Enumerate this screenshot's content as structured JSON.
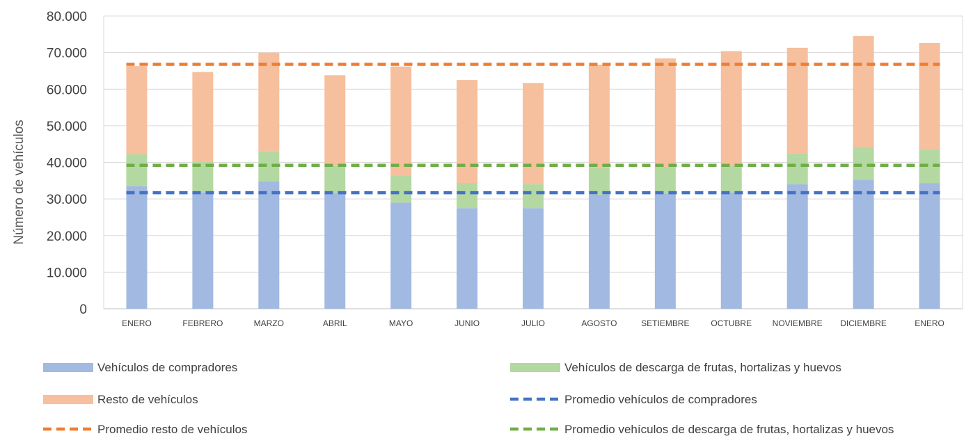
{
  "chart_data": {
    "type": "bar",
    "stacked": true,
    "ylabel": "Número de vehículos",
    "xlabel": "",
    "ylim": [
      0,
      80000
    ],
    "yticks": [
      0,
      10000,
      20000,
      30000,
      40000,
      50000,
      60000,
      70000,
      80000
    ],
    "ytick_labels": [
      "0",
      "10.000",
      "20.000",
      "30.000",
      "40.000",
      "50.000",
      "60.000",
      "70.000",
      "80.000"
    ],
    "grid": true,
    "categories": [
      "ENERO",
      "FEBRERO",
      "MARZO",
      "ABRIL",
      "MAYO",
      "JUNIO",
      "JULIO",
      "AGOSTO",
      "SETIEMBRE",
      "OCTUBRE",
      "NOVIEMBRE",
      "DICIEMBRE",
      "ENERO"
    ],
    "series": [
      {
        "name": "Vehículos de compradores",
        "kind": "bar",
        "color": "#a2b9e2",
        "values": [
          33500,
          31800,
          34800,
          31500,
          29000,
          27500,
          27500,
          31200,
          31500,
          31800,
          34000,
          35300,
          34300
        ]
      },
      {
        "name": "Vehículos de descarga de frutas, hortalizas y huevos",
        "kind": "bar",
        "color": "#b4d8a1",
        "values": [
          8700,
          8400,
          8200,
          7500,
          7400,
          6800,
          6500,
          7200,
          7300,
          7500,
          8500,
          8900,
          9200
        ]
      },
      {
        "name": "Resto de vehículos",
        "kind": "bar",
        "color": "#f6bf9d",
        "values": [
          24100,
          24500,
          27000,
          24800,
          29800,
          28200,
          27700,
          28300,
          29600,
          31100,
          28800,
          30300,
          29100
        ]
      },
      {
        "name": "Promedio vehículos de compradores",
        "kind": "line",
        "color": "#4472c4",
        "value": 31700
      },
      {
        "name": "Promedio resto de vehículos",
        "kind": "line",
        "color": "#ed7d31",
        "value": 66800
      },
      {
        "name": "Promedio vehículos de descarga de frutas, hortalizas y huevos",
        "kind": "line",
        "color": "#70ad47",
        "value": 39200
      }
    ],
    "legend_position": "bottom",
    "legend_order": [
      0,
      1,
      2,
      3,
      4,
      5
    ]
  }
}
